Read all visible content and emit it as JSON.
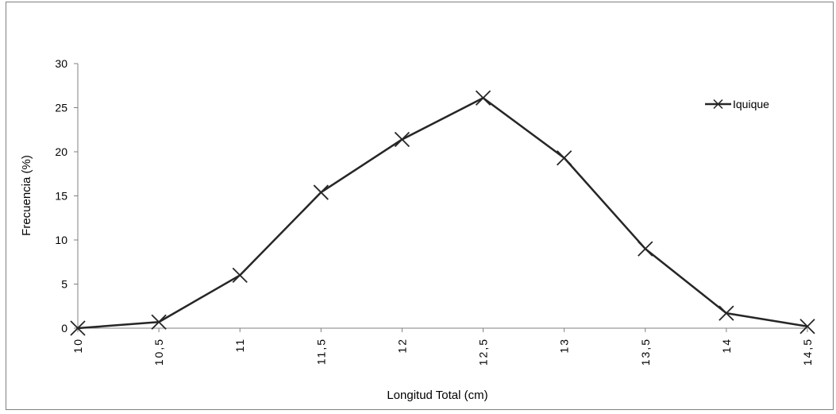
{
  "chart_data": {
    "type": "line",
    "title": "",
    "xlabel": "Longitud Total (cm)",
    "ylabel": "Frecuencia  (%)",
    "x": [
      10,
      10.5,
      11,
      11.5,
      12,
      12.5,
      13,
      13.5,
      14,
      14.5
    ],
    "x_tick_labels": [
      "10",
      "10,5",
      "11",
      "11,5",
      "12",
      "12,5",
      "13",
      "13,5",
      "14",
      "14,5"
    ],
    "y_ticks": [
      "0",
      "5",
      "10",
      "15",
      "20",
      "25",
      "30"
    ],
    "ylim": [
      0,
      30
    ],
    "grid": false,
    "legend_position": "top-right",
    "series": [
      {
        "name": "Iquique",
        "marker": "x",
        "color": "#262626",
        "values": [
          0,
          0.7,
          6.0,
          15.4,
          21.4,
          26.1,
          19.3,
          9.0,
          1.7,
          0.2
        ]
      }
    ]
  }
}
